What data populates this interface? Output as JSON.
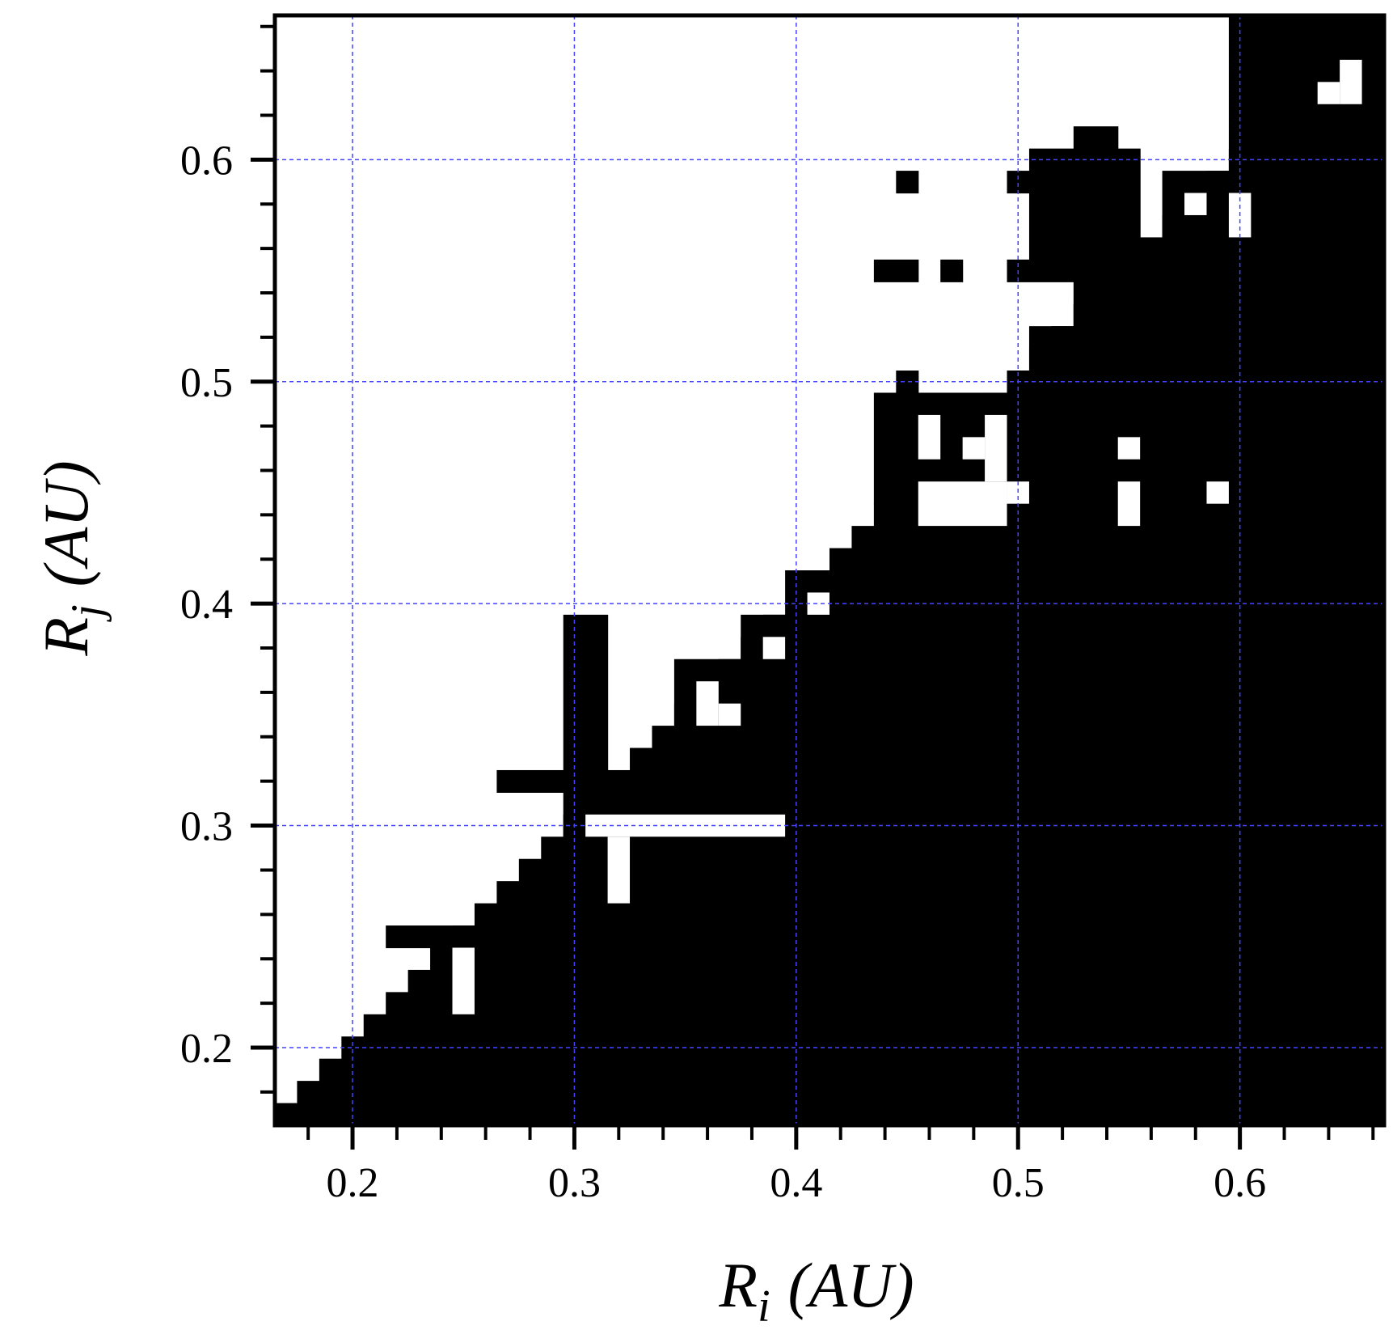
{
  "chart_data": {
    "type": "heatmap",
    "description": "binary map",
    "xlabel": {
      "base": "R",
      "sub": "i",
      "unit": "(AU)"
    },
    "ylabel": {
      "base": "R",
      "sub": "j",
      "unit": "(AU)"
    },
    "xlim": [
      0.165,
      0.665
    ],
    "ylim": [
      0.165,
      0.665
    ],
    "cell_size": 0.01,
    "x_ticks": [
      0.2,
      0.3,
      0.4,
      0.5,
      0.6
    ],
    "x_tick_labels": [
      "0.2",
      "0.3",
      "0.4",
      "0.5",
      "0.6"
    ],
    "y_ticks": [
      0.2,
      0.3,
      0.4,
      0.5,
      0.6
    ],
    "y_tick_labels": [
      "0.2",
      "0.3",
      "0.4",
      "0.5",
      "0.6"
    ],
    "grid": true,
    "colors": {
      "filled": "#000000",
      "empty": "#ffffff",
      "grid": "#4444ff"
    },
    "boundary": [
      [
        0.17,
        0.175
      ],
      [
        0.18,
        0.185
      ],
      [
        0.19,
        0.195
      ],
      [
        0.2,
        0.205
      ],
      [
        0.21,
        0.215
      ],
      [
        0.22,
        0.225
      ],
      [
        0.23,
        0.235
      ],
      [
        0.24,
        0.245
      ],
      [
        0.25,
        0.255
      ],
      [
        0.26,
        0.265
      ],
      [
        0.27,
        0.275
      ],
      [
        0.28,
        0.285
      ],
      [
        0.29,
        0.295
      ],
      [
        0.3,
        0.305
      ],
      [
        0.31,
        0.315
      ],
      [
        0.32,
        0.325
      ],
      [
        0.33,
        0.335
      ],
      [
        0.34,
        0.345
      ],
      [
        0.35,
        0.355
      ],
      [
        0.36,
        0.365
      ],
      [
        0.37,
        0.375
      ],
      [
        0.38,
        0.385
      ],
      [
        0.39,
        0.395
      ],
      [
        0.4,
        0.415
      ],
      [
        0.41,
        0.415
      ],
      [
        0.42,
        0.425
      ],
      [
        0.43,
        0.435
      ],
      [
        0.44,
        0.445
      ],
      [
        0.45,
        0.455
      ],
      [
        0.46,
        0.465
      ],
      [
        0.47,
        0.475
      ],
      [
        0.48,
        0.485
      ],
      [
        0.49,
        0.495
      ],
      [
        0.5,
        0.505
      ],
      [
        0.51,
        0.515
      ],
      [
        0.52,
        0.525
      ],
      [
        0.53,
        0.535
      ],
      [
        0.54,
        0.545
      ],
      [
        0.55,
        0.555
      ],
      [
        0.56,
        0.565
      ],
      [
        0.57,
        0.575
      ],
      [
        0.58,
        0.585
      ],
      [
        0.59,
        0.595
      ],
      [
        0.6,
        0.605
      ],
      [
        0.61,
        0.615
      ],
      [
        0.62,
        0.625
      ],
      [
        0.63,
        0.635
      ],
      [
        0.64,
        0.645
      ],
      [
        0.65,
        0.655
      ],
      [
        0.66,
        0.665
      ]
    ],
    "filled_blocks": [
      [
        0.215,
        0.255,
        0.245,
        0.255
      ],
      [
        0.265,
        0.315,
        0.315,
        0.325
      ],
      [
        0.295,
        0.315,
        0.295,
        0.395
      ],
      [
        0.345,
        0.375,
        0.345,
        0.375
      ],
      [
        0.375,
        0.395,
        0.375,
        0.395
      ],
      [
        0.445,
        0.455,
        0.585,
        0.595
      ],
      [
        0.435,
        0.455,
        0.545,
        0.555
      ],
      [
        0.465,
        0.475,
        0.545,
        0.555
      ],
      [
        0.495,
        0.505,
        0.585,
        0.595
      ],
      [
        0.495,
        0.545,
        0.545,
        0.555
      ],
      [
        0.505,
        0.545,
        0.555,
        0.605
      ],
      [
        0.525,
        0.545,
        0.605,
        0.615
      ],
      [
        0.545,
        0.555,
        0.555,
        0.605
      ],
      [
        0.565,
        0.595,
        0.555,
        0.595
      ],
      [
        0.555,
        0.605,
        0.545,
        0.555
      ],
      [
        0.595,
        0.665,
        0.555,
        0.665
      ],
      [
        0.525,
        0.535,
        0.515,
        0.545
      ],
      [
        0.535,
        0.545,
        0.535,
        0.545
      ],
      [
        0.435,
        0.495,
        0.445,
        0.495
      ],
      [
        0.445,
        0.455,
        0.495,
        0.505
      ],
      [
        0.495,
        0.545,
        0.445,
        0.505
      ],
      [
        0.505,
        0.545,
        0.505,
        0.525
      ],
      [
        0.545,
        0.555,
        0.495,
        0.545
      ],
      [
        0.555,
        0.565,
        0.505,
        0.515
      ],
      [
        0.555,
        0.665,
        0.435,
        0.505
      ],
      [
        0.585,
        0.665,
        0.505,
        0.555
      ]
    ],
    "empty_blocks": [
      [
        0.245,
        0.255,
        0.215,
        0.245
      ],
      [
        0.305,
        0.395,
        0.295,
        0.305
      ],
      [
        0.315,
        0.325,
        0.265,
        0.295
      ],
      [
        0.355,
        0.365,
        0.345,
        0.365
      ],
      [
        0.365,
        0.375,
        0.345,
        0.355
      ],
      [
        0.385,
        0.395,
        0.375,
        0.385
      ],
      [
        0.405,
        0.415,
        0.395,
        0.405
      ],
      [
        0.455,
        0.465,
        0.465,
        0.485
      ],
      [
        0.455,
        0.495,
        0.435,
        0.455
      ],
      [
        0.475,
        0.485,
        0.465,
        0.475
      ],
      [
        0.485,
        0.495,
        0.455,
        0.485
      ],
      [
        0.495,
        0.505,
        0.445,
        0.455
      ],
      [
        0.545,
        0.555,
        0.465,
        0.475
      ],
      [
        0.545,
        0.555,
        0.435,
        0.455
      ],
      [
        0.585,
        0.595,
        0.445,
        0.455
      ],
      [
        0.575,
        0.585,
        0.575,
        0.585
      ],
      [
        0.595,
        0.605,
        0.565,
        0.585
      ],
      [
        0.645,
        0.655,
        0.625,
        0.645
      ],
      [
        0.635,
        0.645,
        0.625,
        0.635
      ]
    ]
  }
}
